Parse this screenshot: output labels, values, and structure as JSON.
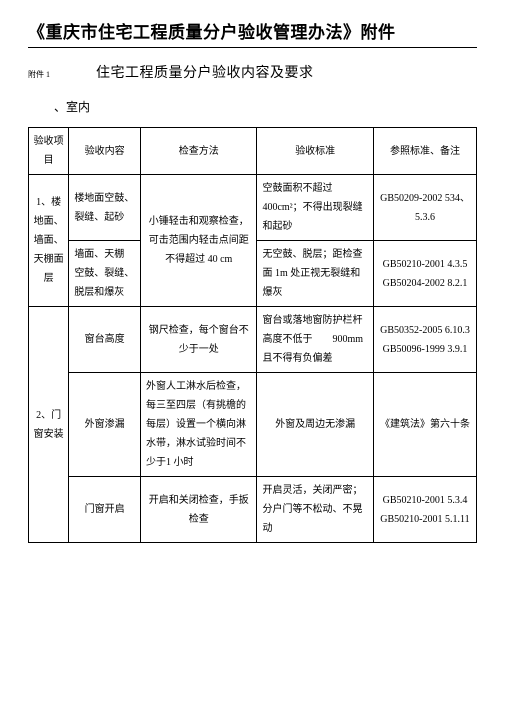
{
  "doc": {
    "main_title": "《重庆市住宅工程质量分户验收管理办法》附件",
    "attach_label": "附件 1",
    "subtitle": "住宅工程质量分户验收内容及要求",
    "section": "、室内"
  },
  "headers": {
    "c0": "验收项目",
    "c1": "验收内容",
    "c2": "检查方法",
    "c3": "验收标准",
    "c4": "参照标准、备注"
  },
  "r1": {
    "proj": "1、楼地面、墙面、天棚面层",
    "content_a": "楼地面空鼓、裂缝、起砂",
    "method": "小锤轻击和观察检查，可击范围内轻击点间距不得超过 40 cm",
    "std_a": "空鼓面积不超过400cm²；不得出现裂缝和起砂",
    "ref_a": "GB50209-2002 534、5.3.6",
    "content_b": "墙面、天棚 空鼓、裂缝、脱层和爆灰",
    "std_b": "无空鼓、脱层；距检查面 1m 处正视无裂缝和爆灰",
    "ref_b": "GB50210-2001 4.3.5 GB50204-2002 8.2.1"
  },
  "r2": {
    "proj": "2、门窗安装",
    "content_a": "窗台高度",
    "method_a": "钢尺检查，每个窗台不少于一处",
    "std_a": "窗台或落地窗防护栏杆高度不低于　　900mm且不得有负偏差",
    "ref_a": "GB50352-2005 6.10.3 GB50096-1999 3.9.1",
    "content_b": "外窗渗漏",
    "method_b": "外窗人工淋水后检查，每三至四层（有挑檐的 每层）设置一个横向淋 水带，淋水试验时间不 少于1 小时",
    "std_b": "外窗及周边无渗漏",
    "ref_b": "《建筑法》第六十条",
    "content_c": "门窗开启",
    "method_c": "开启和关闭检查，手扳 检查",
    "std_c": "开启灵活，关闭严密；分户门等不松动、不晃动",
    "ref_c": "GB50210-2001 5.3.4 GB50210-2001 5.1.11"
  }
}
